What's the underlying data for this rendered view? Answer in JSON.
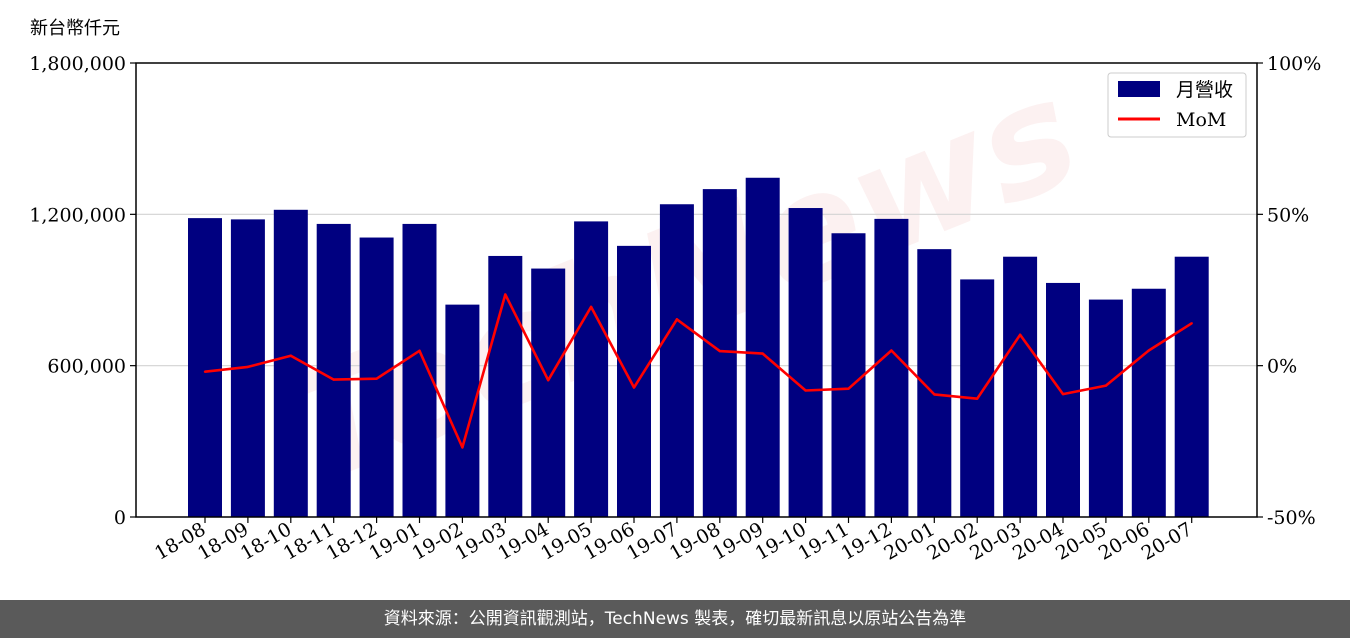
{
  "unit_label": "新台幣仟元",
  "footer": "資料來源：公開資訊觀測站，TechNews 製表，確切最新訊息以原站公告為準",
  "watermark": "TechNews",
  "colors": {
    "bar": "#000080",
    "line": "#ff0000",
    "grid": "#d3d3d3",
    "footer_bg": "#5a5a5a"
  },
  "chart_data": {
    "type": "bar+line",
    "categories": [
      "18-08",
      "18-09",
      "18-10",
      "18-11",
      "18-12",
      "19-01",
      "19-02",
      "19-03",
      "19-04",
      "19-05",
      "19-06",
      "19-07",
      "19-08",
      "19-09",
      "19-10",
      "19-11",
      "19-12",
      "20-01",
      "20-02",
      "20-03",
      "20-04",
      "20-05",
      "20-06",
      "20-07"
    ],
    "series": [
      {
        "name": "月營收",
        "type": "bar",
        "axis": "left",
        "values": [
          1185000,
          1180000,
          1218000,
          1162000,
          1108000,
          1162000,
          842000,
          1035000,
          985000,
          1172000,
          1075000,
          1240000,
          1300000,
          1345000,
          1225000,
          1125000,
          1182000,
          1062000,
          942000,
          1032000,
          928000,
          862000,
          905000,
          1032000
        ]
      },
      {
        "name": "MoM",
        "type": "line",
        "axis": "right",
        "values": [
          -2.0,
          -0.4,
          3.3,
          -4.6,
          -4.3,
          4.9,
          -27.0,
          23.5,
          -4.8,
          19.4,
          -7.2,
          15.3,
          4.8,
          4.0,
          -8.2,
          -7.6,
          5.0,
          -9.5,
          -10.9,
          10.2,
          -9.4,
          -6.6,
          5.0,
          14.0
        ]
      }
    ],
    "left_axis": {
      "min": 0,
      "max": 1800000,
      "ticks": [
        "0",
        "600,000",
        "1,200,000",
        "1,800,000"
      ],
      "tick_values": [
        0,
        600000,
        1200000,
        1800000
      ]
    },
    "right_axis": {
      "min": -50,
      "max": 100,
      "ticks": [
        "-50%",
        "0%",
        "50%",
        "100%"
      ],
      "tick_values": [
        -50,
        0,
        50,
        100
      ]
    },
    "grid": true,
    "legend": {
      "placement": "top-right",
      "entries": [
        "月營收",
        "MoM"
      ]
    }
  }
}
